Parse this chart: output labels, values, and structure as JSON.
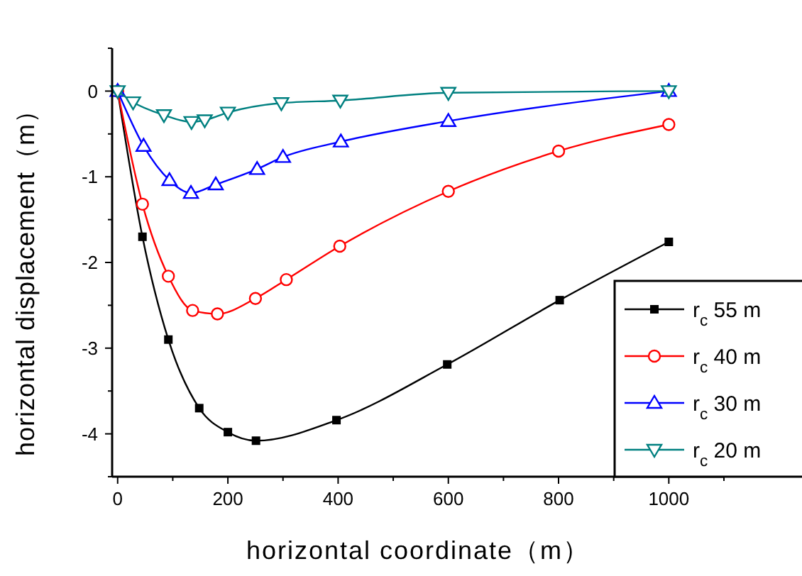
{
  "chart_data": {
    "type": "line",
    "xlabel": "horizontal coordinate（m）",
    "ylabel": "horizontal displacement（m）",
    "xlim": [
      -10,
      1100
    ],
    "ylim": [
      -4.5,
      0.5
    ],
    "xticks": [
      0,
      200,
      400,
      600,
      800,
      1000
    ],
    "yticks": [
      {
        "value": -4.5,
        "label": null
      },
      -4,
      {
        "value": -3.5,
        "label": null
      },
      -3,
      {
        "value": -2.5,
        "label": null
      },
      -2,
      {
        "value": -1.5,
        "label": null
      },
      -1,
      {
        "value": -0.5,
        "label": null
      },
      0,
      {
        "value": 0.5,
        "label": null
      }
    ],
    "grid": false,
    "legend": "bottom right",
    "line_style": "solid",
    "series": [
      {
        "name": "r$_{c}$ 55 m",
        "color": "#000000",
        "marker": "square",
        "x": [
          0,
          45,
          92,
          148,
          200,
          251,
          397,
          598,
          802,
          1000
        ],
        "values": [
          0,
          -1.7,
          -2.9,
          -3.7,
          -3.98,
          -4.08,
          -3.84,
          -3.19,
          -2.44,
          -1.76
        ]
      },
      {
        "name": "r$_{c}$ 40 m",
        "color": "#ff0000",
        "marker": "circle",
        "x": [
          0,
          45,
          92,
          136,
          181,
          250,
          306,
          403,
          600,
          800,
          1000
        ],
        "values": [
          0,
          -1.32,
          -2.16,
          -2.56,
          -2.6,
          -2.42,
          -2.2,
          -1.81,
          -1.17,
          -0.7,
          -0.39
        ]
      },
      {
        "name": "r$_{c}$ 30 m",
        "color": "#0000ff",
        "marker": "triangle",
        "x": [
          0,
          47,
          94,
          133,
          178,
          253,
          300,
          405,
          600,
          1000
        ],
        "values": [
          0,
          -0.64,
          -1.04,
          -1.19,
          -1.09,
          -0.91,
          -0.77,
          -0.59,
          -0.35,
          0
        ]
      },
      {
        "name": "r$_{c}$ 20 m",
        "color": "#008080",
        "marker": "triangle-down",
        "x": [
          0,
          28,
          84,
          134,
          158,
          200,
          297,
          404,
          600,
          1000
        ],
        "values": [
          0,
          -0.13,
          -0.28,
          -0.36,
          -0.34,
          -0.25,
          -0.14,
          -0.11,
          -0.02,
          0
        ]
      }
    ]
  }
}
